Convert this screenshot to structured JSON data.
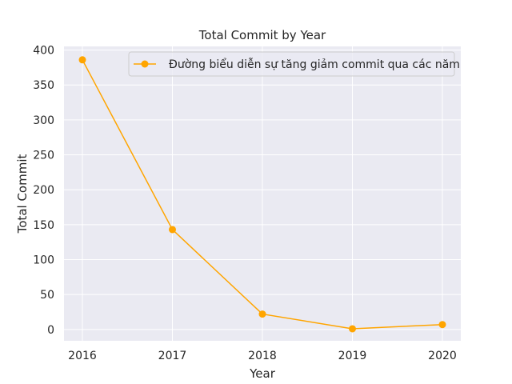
{
  "chart_data": {
    "type": "line",
    "title": "Total Commit by Year",
    "xlabel": "Year",
    "ylabel": "Total Commit",
    "x": [
      "2016",
      "2017",
      "2018",
      "2019",
      "2020"
    ],
    "series": [
      {
        "name": "Đường biểu diễn sự tăng giảm commit qua các năm",
        "values": [
          386,
          143,
          22,
          1,
          7
        ],
        "color": "#ffa500",
        "marker": "circle"
      }
    ],
    "xticks": [
      "2016",
      "2017",
      "2018",
      "2019",
      "2020"
    ],
    "yticks": [
      "0",
      "50",
      "100",
      "150",
      "200",
      "250",
      "300",
      "350",
      "400"
    ],
    "ylim": [
      -16.25,
      405.25
    ],
    "grid": true,
    "legend": "top-right",
    "background": "#eaeaf2",
    "grid_color": "#ffffff"
  }
}
